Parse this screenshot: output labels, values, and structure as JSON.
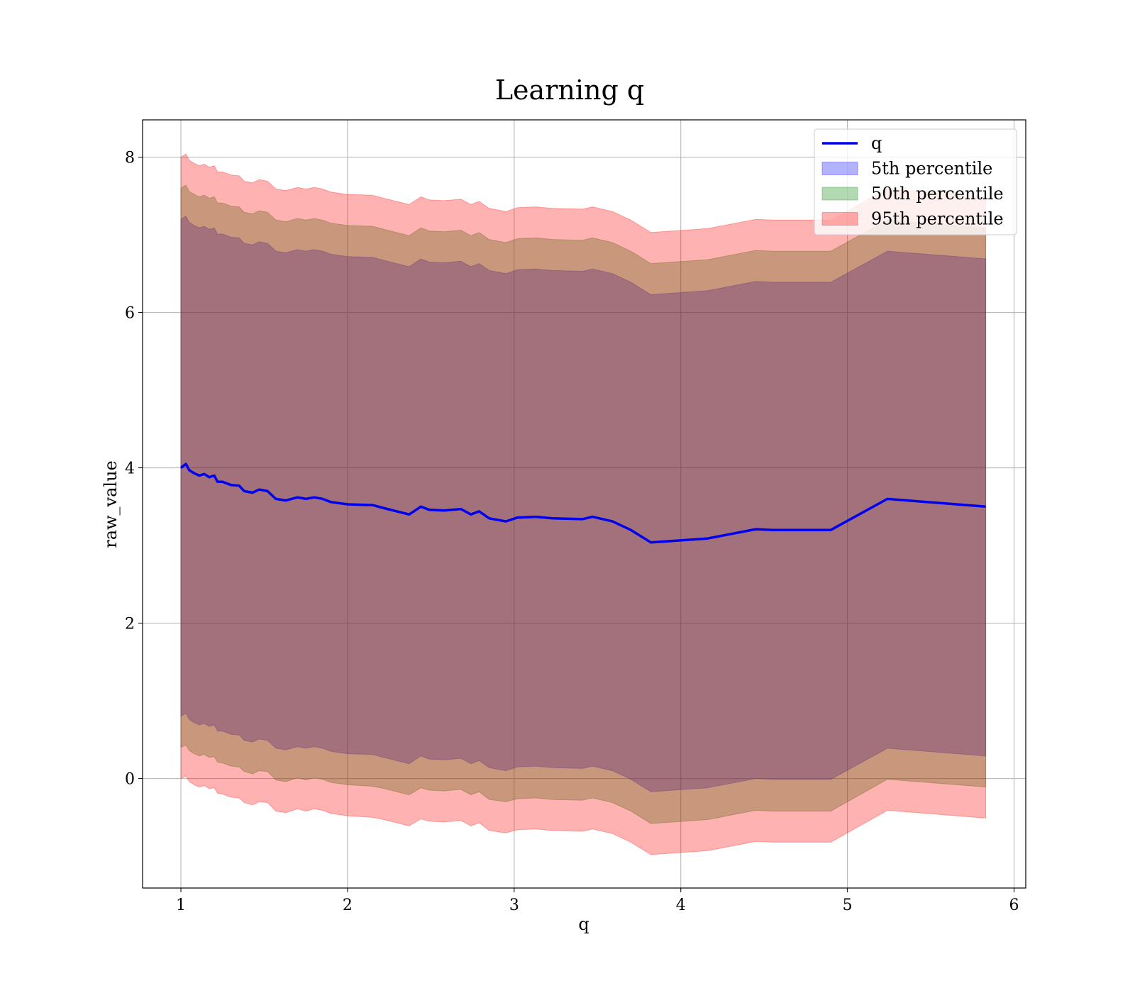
{
  "chart_data": {
    "type": "line",
    "title": "Learning q",
    "xlabel": "q",
    "ylabel": "raw_value",
    "xlim": [
      0.77,
      6.07
    ],
    "ylim": [
      -1.41,
      8.48
    ],
    "xticks": [
      1,
      2,
      3,
      4,
      5,
      6
    ],
    "yticks": [
      0,
      2,
      4,
      6,
      8
    ],
    "xtick_labels": [
      "1",
      "2",
      "3",
      "4",
      "5",
      "6"
    ],
    "ytick_labels": [
      "0",
      "2",
      "4",
      "6",
      "8"
    ],
    "grid": true,
    "legend_position": "upper-right",
    "x": [
      1.0,
      1.03,
      1.05,
      1.08,
      1.11,
      1.14,
      1.17,
      1.2,
      1.22,
      1.25,
      1.3,
      1.35,
      1.38,
      1.43,
      1.47,
      1.52,
      1.57,
      1.63,
      1.7,
      1.75,
      1.8,
      1.85,
      1.9,
      2.0,
      2.15,
      2.22,
      2.37,
      2.44,
      2.49,
      2.58,
      2.68,
      2.74,
      2.79,
      2.85,
      2.95,
      3.02,
      3.13,
      3.23,
      3.41,
      3.47,
      3.59,
      3.7,
      3.82,
      4.16,
      4.45,
      4.55,
      4.9,
      5.24,
      5.83
    ],
    "series": [
      {
        "name": "q",
        "kind": "line",
        "color": "#0000ee",
        "values": [
          4.0,
          4.05,
          3.97,
          3.93,
          3.9,
          3.92,
          3.88,
          3.9,
          3.82,
          3.82,
          3.78,
          3.77,
          3.7,
          3.68,
          3.72,
          3.7,
          3.6,
          3.58,
          3.62,
          3.6,
          3.62,
          3.6,
          3.56,
          3.53,
          3.52,
          3.48,
          3.4,
          3.5,
          3.46,
          3.45,
          3.47,
          3.4,
          3.44,
          3.35,
          3.31,
          3.36,
          3.37,
          3.35,
          3.34,
          3.37,
          3.31,
          3.2,
          3.04,
          3.09,
          3.21,
          3.2,
          3.2,
          3.6,
          3.5
        ]
      },
      {
        "name": "5th percentile",
        "kind": "band",
        "color": "#0000ff",
        "lower": [
          0.8,
          0.84,
          0.76,
          0.72,
          0.69,
          0.71,
          0.67,
          0.69,
          0.61,
          0.61,
          0.57,
          0.56,
          0.49,
          0.47,
          0.51,
          0.49,
          0.39,
          0.37,
          0.41,
          0.39,
          0.41,
          0.39,
          0.35,
          0.32,
          0.31,
          0.27,
          0.19,
          0.29,
          0.25,
          0.24,
          0.26,
          0.19,
          0.23,
          0.14,
          0.1,
          0.15,
          0.16,
          0.14,
          0.13,
          0.16,
          0.1,
          -0.01,
          -0.17,
          -0.12,
          0.0,
          -0.01,
          -0.01,
          0.39,
          0.29
        ],
        "upper": [
          7.2,
          7.24,
          7.16,
          7.12,
          7.09,
          7.11,
          7.07,
          7.09,
          7.01,
          7.01,
          6.97,
          6.96,
          6.89,
          6.87,
          6.91,
          6.89,
          6.79,
          6.77,
          6.81,
          6.79,
          6.81,
          6.79,
          6.75,
          6.72,
          6.71,
          6.67,
          6.59,
          6.69,
          6.65,
          6.64,
          6.66,
          6.59,
          6.63,
          6.54,
          6.5,
          6.55,
          6.56,
          6.54,
          6.53,
          6.56,
          6.5,
          6.39,
          6.23,
          6.28,
          6.4,
          6.39,
          6.39,
          6.79,
          6.69
        ]
      },
      {
        "name": "50th percentile",
        "kind": "band",
        "color": "#008000",
        "lower": [
          0.4,
          0.43,
          0.36,
          0.32,
          0.29,
          0.31,
          0.27,
          0.28,
          0.21,
          0.2,
          0.16,
          0.15,
          0.09,
          0.06,
          0.1,
          0.09,
          -0.02,
          -0.04,
          0.01,
          -0.02,
          0.01,
          -0.01,
          -0.05,
          -0.08,
          -0.1,
          -0.13,
          -0.21,
          -0.12,
          -0.15,
          -0.16,
          -0.14,
          -0.21,
          -0.17,
          -0.27,
          -0.3,
          -0.26,
          -0.25,
          -0.27,
          -0.28,
          -0.25,
          -0.31,
          -0.42,
          -0.58,
          -0.53,
          -0.41,
          -0.42,
          -0.42,
          -0.01,
          -0.11
        ],
        "upper": [
          7.6,
          7.64,
          7.56,
          7.52,
          7.49,
          7.51,
          7.47,
          7.49,
          7.41,
          7.41,
          7.37,
          7.36,
          7.29,
          7.27,
          7.31,
          7.29,
          7.19,
          7.17,
          7.21,
          7.19,
          7.21,
          7.19,
          7.15,
          7.12,
          7.11,
          7.07,
          6.99,
          7.09,
          7.05,
          7.04,
          7.06,
          6.99,
          7.03,
          6.94,
          6.9,
          6.95,
          6.96,
          6.94,
          6.93,
          6.96,
          6.9,
          6.79,
          6.63,
          6.68,
          6.8,
          6.79,
          6.79,
          7.19,
          7.09
        ]
      },
      {
        "name": "95th percentile",
        "kind": "band",
        "color": "#ff0000",
        "lower": [
          0.0,
          0.03,
          -0.04,
          -0.08,
          -0.11,
          -0.09,
          -0.13,
          -0.12,
          -0.19,
          -0.2,
          -0.24,
          -0.25,
          -0.31,
          -0.34,
          -0.3,
          -0.31,
          -0.42,
          -0.44,
          -0.39,
          -0.42,
          -0.39,
          -0.41,
          -0.45,
          -0.48,
          -0.5,
          -0.53,
          -0.61,
          -0.52,
          -0.55,
          -0.56,
          -0.54,
          -0.61,
          -0.57,
          -0.67,
          -0.7,
          -0.66,
          -0.65,
          -0.67,
          -0.68,
          -0.65,
          -0.71,
          -0.82,
          -0.98,
          -0.93,
          -0.81,
          -0.82,
          -0.82,
          -0.41,
          -0.51
        ],
        "upper": [
          8.0,
          8.04,
          7.96,
          7.92,
          7.89,
          7.91,
          7.87,
          7.89,
          7.81,
          7.81,
          7.77,
          7.76,
          7.69,
          7.67,
          7.71,
          7.69,
          7.59,
          7.57,
          7.61,
          7.59,
          7.61,
          7.59,
          7.55,
          7.52,
          7.51,
          7.47,
          7.39,
          7.49,
          7.45,
          7.44,
          7.46,
          7.39,
          7.43,
          7.34,
          7.3,
          7.35,
          7.36,
          7.34,
          7.33,
          7.36,
          7.3,
          7.19,
          7.03,
          7.08,
          7.2,
          7.19,
          7.19,
          7.59,
          7.49
        ]
      }
    ]
  }
}
